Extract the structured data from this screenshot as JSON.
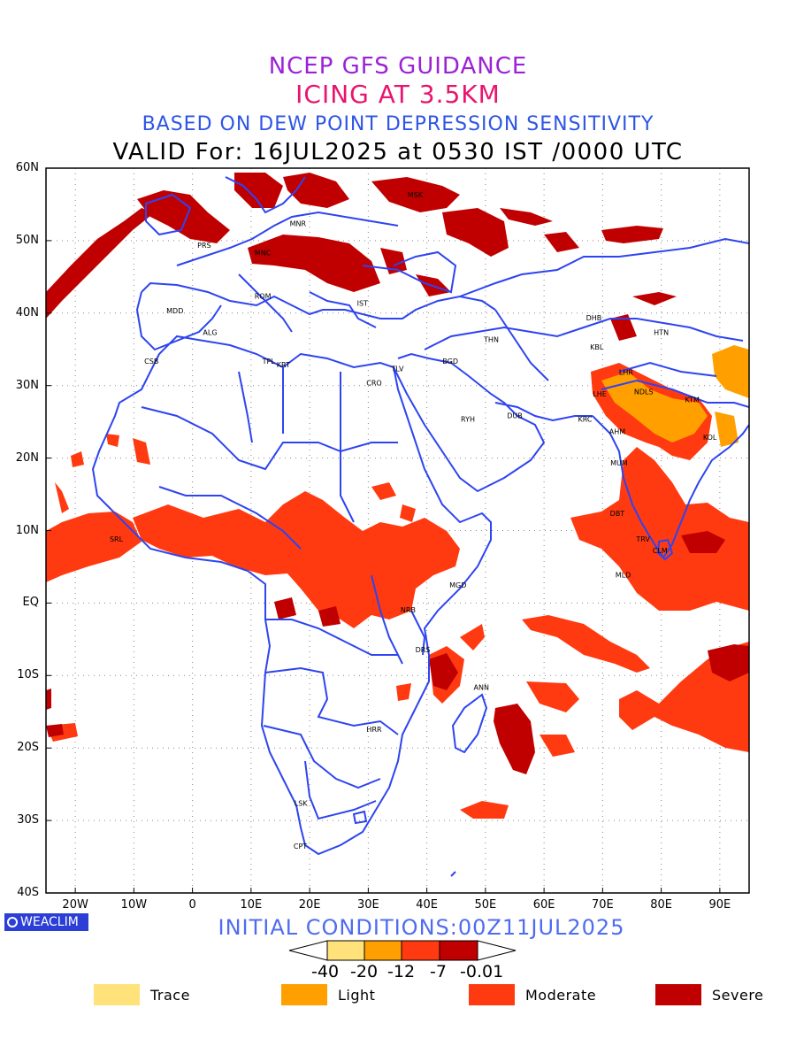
{
  "titles": {
    "line1": "NCEP GFS GUIDANCE",
    "line2": "ICING AT 3.5KM",
    "line3": "BASED ON DEW POINT DEPRESSION SENSITIVITY",
    "line4": "VALID For: 16JUL2025 at 0530 IST /0000 UTC"
  },
  "colors": {
    "line1": "#9b22d6",
    "line2": "#e8156e",
    "line3": "#2e55e6",
    "coast": "#2e44f0",
    "trace": "#ffe27a",
    "light": "#ffa000",
    "moderate": "#ff3a10",
    "severe": "#c00000"
  },
  "axes": {
    "lat_labels": [
      "60N",
      "50N",
      "40N",
      "30N",
      "20N",
      "10N",
      "EQ",
      "10S",
      "20S",
      "30S",
      "40S"
    ],
    "lon_labels": [
      "20W",
      "10W",
      "0",
      "10E",
      "20E",
      "30E",
      "40E",
      "50E",
      "60E",
      "70E",
      "80E",
      "90E"
    ]
  },
  "cities": [
    {
      "name": "MNR",
      "lon": 18,
      "lat": 52
    },
    {
      "name": "PRS",
      "lon": 2,
      "lat": 49
    },
    {
      "name": "MNC",
      "lon": 12,
      "lat": 48
    },
    {
      "name": "MSK",
      "lon": 38,
      "lat": 56
    },
    {
      "name": "ROM",
      "lon": 12,
      "lat": 42
    },
    {
      "name": "MDD",
      "lon": -3,
      "lat": 40
    },
    {
      "name": "IST",
      "lon": 29,
      "lat": 41
    },
    {
      "name": "ALG",
      "lon": 3,
      "lat": 37
    },
    {
      "name": "CSB",
      "lon": -7,
      "lat": 33
    },
    {
      "name": "TPL",
      "lon": 13,
      "lat": 33
    },
    {
      "name": "KRT",
      "lon": 15.5,
      "lat": 32.5
    },
    {
      "name": "TLV",
      "lon": 35,
      "lat": 32
    },
    {
      "name": "CRO",
      "lon": 31,
      "lat": 30
    },
    {
      "name": "BGD",
      "lon": 44,
      "lat": 33
    },
    {
      "name": "THN",
      "lon": 51,
      "lat": 36
    },
    {
      "name": "RYH",
      "lon": 47,
      "lat": 25
    },
    {
      "name": "DUB",
      "lon": 55,
      "lat": 25.5
    },
    {
      "name": "DHB",
      "lon": 68.5,
      "lat": 39
    },
    {
      "name": "HTN",
      "lon": 80,
      "lat": 37
    },
    {
      "name": "KBL",
      "lon": 69,
      "lat": 35
    },
    {
      "name": "LHR",
      "lon": 74,
      "lat": 31.5
    },
    {
      "name": "LHE",
      "lon": 69.5,
      "lat": 28.5
    },
    {
      "name": "NDLS",
      "lon": 77,
      "lat": 28.8
    },
    {
      "name": "KTM",
      "lon": 85.3,
      "lat": 27.7
    },
    {
      "name": "KRC",
      "lon": 67,
      "lat": 25
    },
    {
      "name": "AHM",
      "lon": 72.5,
      "lat": 23.3
    },
    {
      "name": "KOL",
      "lon": 88.3,
      "lat": 22.5
    },
    {
      "name": "MUM",
      "lon": 72.8,
      "lat": 19
    },
    {
      "name": "DBT",
      "lon": 72.5,
      "lat": 12
    },
    {
      "name": "TRV",
      "lon": 76.9,
      "lat": 8.5
    },
    {
      "name": "CLM",
      "lon": 79.8,
      "lat": 6.9
    },
    {
      "name": "MLD",
      "lon": 73.5,
      "lat": 3.5
    },
    {
      "name": "SRL",
      "lon": -13,
      "lat": 8.5
    },
    {
      "name": "MGD",
      "lon": 45.3,
      "lat": 2.1
    },
    {
      "name": "NRB",
      "lon": 36.8,
      "lat": -1.3
    },
    {
      "name": "DRS",
      "lon": 39.3,
      "lat": -6.8
    },
    {
      "name": "ANN",
      "lon": 49.3,
      "lat": -12
    },
    {
      "name": "HRR",
      "lon": 31,
      "lat": -17.8
    },
    {
      "name": "LSK",
      "lon": 18.5,
      "lat": -28
    },
    {
      "name": "CPT",
      "lon": 18.4,
      "lat": -33.9
    }
  ],
  "initial_conditions": "INITIAL CONDITIONS:00Z11JUL2025",
  "colorbar": {
    "thresholds": [
      "-40",
      "-20",
      "-12",
      "-7",
      "-0.01"
    ]
  },
  "legend": [
    {
      "label": "Trace",
      "color": "#ffe27a"
    },
    {
      "label": "Light",
      "color": "#ffa000"
    },
    {
      "label": "Moderate",
      "color": "#ff3a10"
    },
    {
      "label": "Severe",
      "color": "#c00000"
    }
  ],
  "logo": "WEACLIM"
}
